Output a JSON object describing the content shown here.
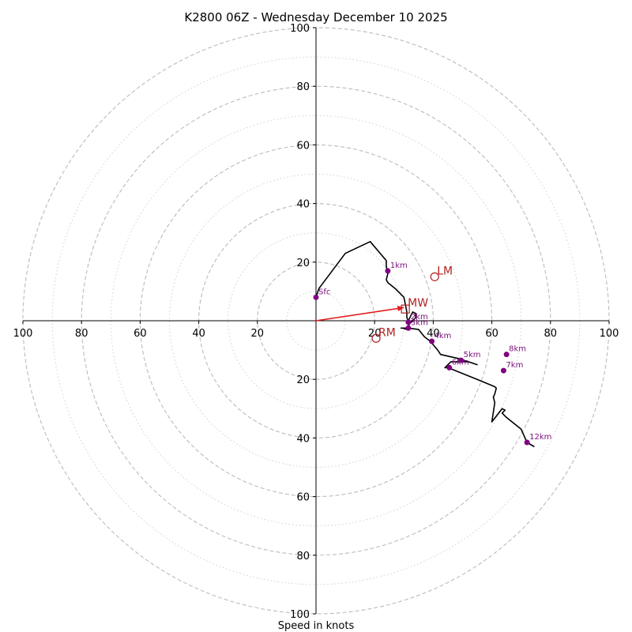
{
  "chart_data": {
    "type": "hodograph",
    "title": "K2800 06Z - Wednesday December 10 2025",
    "xlabel": "Speed in knots",
    "ylabel": "",
    "xlim": [
      -100,
      100
    ],
    "ylim": [
      -100,
      100
    ],
    "rings_major": [
      20,
      40,
      60,
      80,
      100
    ],
    "rings_minor": [
      10,
      30,
      50,
      70,
      90
    ],
    "x_ticks": [
      {
        "value": -100,
        "label": "100"
      },
      {
        "value": -80,
        "label": "80"
      },
      {
        "value": -60,
        "label": "60"
      },
      {
        "value": -40,
        "label": "40"
      },
      {
        "value": -20,
        "label": "20"
      },
      {
        "value": 20,
        "label": "20"
      },
      {
        "value": 40,
        "label": "40"
      },
      {
        "value": 60,
        "label": "60"
      },
      {
        "value": 80,
        "label": "80"
      },
      {
        "value": 100,
        "label": "100"
      }
    ],
    "y_ticks": [
      {
        "value": 100,
        "label": "100"
      },
      {
        "value": 80,
        "label": "80"
      },
      {
        "value": 60,
        "label": "60"
      },
      {
        "value": 40,
        "label": "40"
      },
      {
        "value": 20,
        "label": "20"
      },
      {
        "value": -20,
        "label": "20"
      },
      {
        "value": -40,
        "label": "40"
      },
      {
        "value": -60,
        "label": "60"
      },
      {
        "value": -80,
        "label": "80"
      },
      {
        "value": -100,
        "label": "100"
      }
    ],
    "trace": [
      [
        0,
        8
      ],
      [
        1,
        11
      ],
      [
        10,
        23
      ],
      [
        18.5,
        27
      ],
      [
        24,
        20.5
      ],
      [
        24,
        18.5
      ],
      [
        24.5,
        16
      ],
      [
        24,
        14
      ],
      [
        24.5,
        13
      ],
      [
        27,
        11
      ],
      [
        30,
        8
      ],
      [
        31,
        3
      ],
      [
        31,
        1
      ],
      [
        31.5,
        0
      ],
      [
        32,
        1
      ],
      [
        33,
        3
      ],
      [
        34,
        2.5
      ],
      [
        34,
        1
      ],
      [
        32,
        -1
      ],
      [
        31,
        -2.5
      ],
      [
        31,
        -3
      ],
      [
        29.5,
        -2.5
      ],
      [
        29,
        -2.5
      ],
      [
        31.5,
        -2.5
      ],
      [
        35,
        -3
      ],
      [
        37,
        -5.5
      ],
      [
        39,
        -7
      ],
      [
        41.5,
        -10
      ],
      [
        42.5,
        -11.5
      ],
      [
        49,
        -13
      ],
      [
        55,
        -15
      ],
      [
        52,
        -14
      ],
      [
        46,
        -14
      ],
      [
        44,
        -16
      ],
      [
        45,
        -16
      ],
      [
        55,
        -20
      ],
      [
        61,
        -22.5
      ],
      [
        61.5,
        -23
      ],
      [
        61,
        -25
      ],
      [
        60.5,
        -26
      ],
      [
        61,
        -28
      ],
      [
        60,
        -34.5
      ],
      [
        63.5,
        -30
      ],
      [
        64.5,
        -30.5
      ],
      [
        63.5,
        -31.5
      ],
      [
        65,
        -33
      ],
      [
        70,
        -37
      ],
      [
        72,
        -41.5
      ],
      [
        74.5,
        -43
      ]
    ],
    "height_markers": [
      {
        "label": "Sfc",
        "u": 0,
        "v": 8
      },
      {
        "label": "1km",
        "u": 24.5,
        "v": 17
      },
      {
        "label": "2km",
        "u": 31.5,
        "v": -0.5
      },
      {
        "label": "3km",
        "u": 31.5,
        "v": -2.5
      },
      {
        "label": "4km",
        "u": 39.5,
        "v": -7
      },
      {
        "label": "5km",
        "u": 49.5,
        "v": -13.5
      },
      {
        "label": "6km",
        "u": 45.5,
        "v": -16
      },
      {
        "label": "7km",
        "u": 64,
        "v": -17
      },
      {
        "label": "8km",
        "u": 65,
        "v": -11.5
      },
      {
        "label": "12km",
        "u": 72,
        "v": -41.5
      }
    ],
    "motion_markers": [
      {
        "label": "LM",
        "u": 40.5,
        "v": 15
      },
      {
        "label": "MW",
        "u": 30.5,
        "v": 4
      },
      {
        "label": "RM",
        "u": 20.5,
        "v": -6
      }
    ],
    "mean_wind_vector": {
      "u": 30,
      "v": 4.5
    },
    "colors": {
      "trace": "#000000",
      "height_marker": "#800080",
      "height_label": "#7b0f7b",
      "motion": "#b22222",
      "vector": "#e31a1c",
      "grid": "#bbbbbb"
    }
  }
}
